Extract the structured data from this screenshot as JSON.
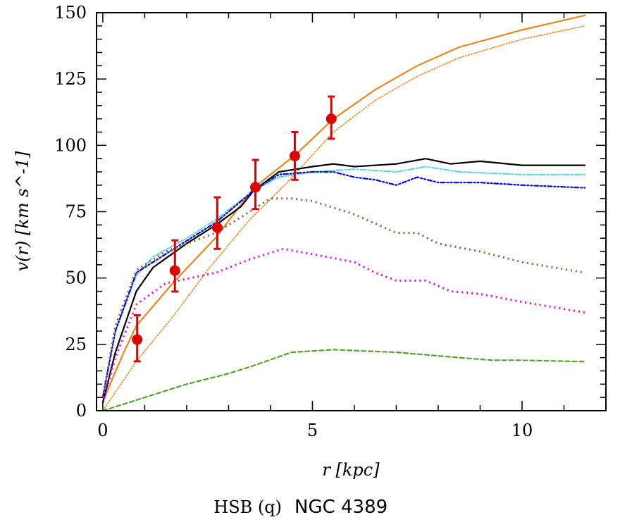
{
  "chart_data": {
    "type": "line",
    "title": "",
    "caption_prefix": "HSB (q)",
    "caption_name": "NGC 4389",
    "xlabel": "r [kpc]",
    "ylabel": "v(r) [km s^-1]",
    "xlim": [
      -0.15,
      12.0
    ],
    "ylim": [
      0,
      150
    ],
    "xticks": [
      0,
      5,
      10
    ],
    "yticks": [
      0,
      25,
      50,
      75,
      100,
      125,
      150
    ],
    "grid": false,
    "observed": {
      "color": "#dd0000",
      "points": [
        {
          "r": 0.82,
          "v": 26.8,
          "lo": 18.6,
          "hi": 36.0
        },
        {
          "r": 1.72,
          "v": 52.8,
          "lo": 44.9,
          "hi": 64.2
        },
        {
          "r": 2.73,
          "v": 69.0,
          "lo": 61.0,
          "hi": 80.4
        },
        {
          "r": 3.64,
          "v": 84.2,
          "lo": 76.0,
          "hi": 94.5
        },
        {
          "r": 4.58,
          "v": 96.0,
          "lo": 87.0,
          "hi": 105.0
        },
        {
          "r": 5.45,
          "v": 110.0,
          "lo": 102.5,
          "hi": 118.4
        }
      ]
    },
    "series": [
      {
        "color": "#e8871e",
        "style": "solid",
        "x": [
          0,
          0.5,
          0.8,
          1.7,
          2.7,
          3.6,
          4.6,
          5.5,
          6.5,
          7.5,
          8.5,
          10,
          11.5
        ],
        "y": [
          3.5,
          22,
          32,
          48.6,
          65.3,
          84,
          96.5,
          110,
          121,
          130,
          137,
          143.5,
          149
        ]
      },
      {
        "color": "#e8871e",
        "style": "dotted-fine",
        "x": [
          0,
          0.8,
          1.7,
          2.5,
          3.5,
          4.4,
          5.5,
          6.5,
          7.5,
          8.5,
          10,
          11.5
        ],
        "y": [
          0,
          18.6,
          36,
          53,
          72,
          86,
          105,
          117,
          126,
          133,
          140,
          145
        ]
      },
      {
        "color": "#000000",
        "style": "solid",
        "x": [
          0,
          0.3,
          0.8,
          1.2,
          2,
          2.7,
          3.3,
          3.6,
          4.2,
          5,
          5.5,
          6,
          7,
          7.7,
          8.3,
          9,
          10,
          11.5
        ],
        "y": [
          3,
          22,
          45,
          54,
          63,
          70,
          77,
          83,
          90,
          92,
          93,
          92,
          93,
          95,
          93,
          94,
          92.5,
          92.5
        ]
      },
      {
        "color": "#66d6d6",
        "style": "dashdot",
        "x": [
          0,
          0.3,
          0.8,
          1.2,
          2,
          2.7,
          3.6,
          4.2,
          5,
          6,
          7,
          7.7,
          8.5,
          10,
          11.5
        ],
        "y": [
          5,
          30,
          51,
          58,
          65,
          72,
          83,
          88,
          90,
          91,
          90,
          92,
          90,
          89,
          89
        ]
      },
      {
        "color": "#0000ee",
        "style": "dashdotdot",
        "x": [
          0,
          0.3,
          0.8,
          2,
          2.7,
          3.6,
          4.2,
          5,
          5.5,
          6,
          6.5,
          7,
          7.5,
          8,
          9,
          10,
          11.5
        ],
        "y": [
          5,
          30,
          52,
          64,
          71,
          83,
          89,
          90,
          90,
          88,
          87,
          85,
          88,
          86,
          86,
          85,
          84
        ]
      },
      {
        "color": "#9b5a3c",
        "style": "dotted",
        "x": [
          0,
          0.3,
          0.8,
          1.5,
          2.7,
          3.3,
          4,
          4.5,
          5,
          6,
          7,
          7.5,
          8,
          9,
          10,
          11.5
        ],
        "y": [
          5,
          32,
          53,
          60,
          67,
          73,
          80,
          80,
          79,
          74,
          67,
          67,
          63,
          60,
          56,
          52
        ]
      },
      {
        "color": "#ee00ee",
        "style": "dotted",
        "x": [
          0,
          0.3,
          0.8,
          1.5,
          2.7,
          3.5,
          4.3,
          5,
          6,
          6.5,
          7,
          7.7,
          8.3,
          9,
          10,
          11.5
        ],
        "y": [
          3,
          20,
          40,
          48,
          52,
          57,
          61,
          59,
          56,
          52,
          49,
          49,
          45,
          44,
          41,
          37
        ]
      },
      {
        "color": "#5aa02c",
        "style": "dashed",
        "x": [
          0,
          1,
          2,
          3,
          3.6,
          4.5,
          5.5,
          7,
          8.5,
          9.3,
          10,
          11.5
        ],
        "y": [
          0,
          5,
          10,
          14,
          17,
          22,
          23,
          22,
          20,
          19,
          19,
          18.5
        ]
      }
    ]
  }
}
